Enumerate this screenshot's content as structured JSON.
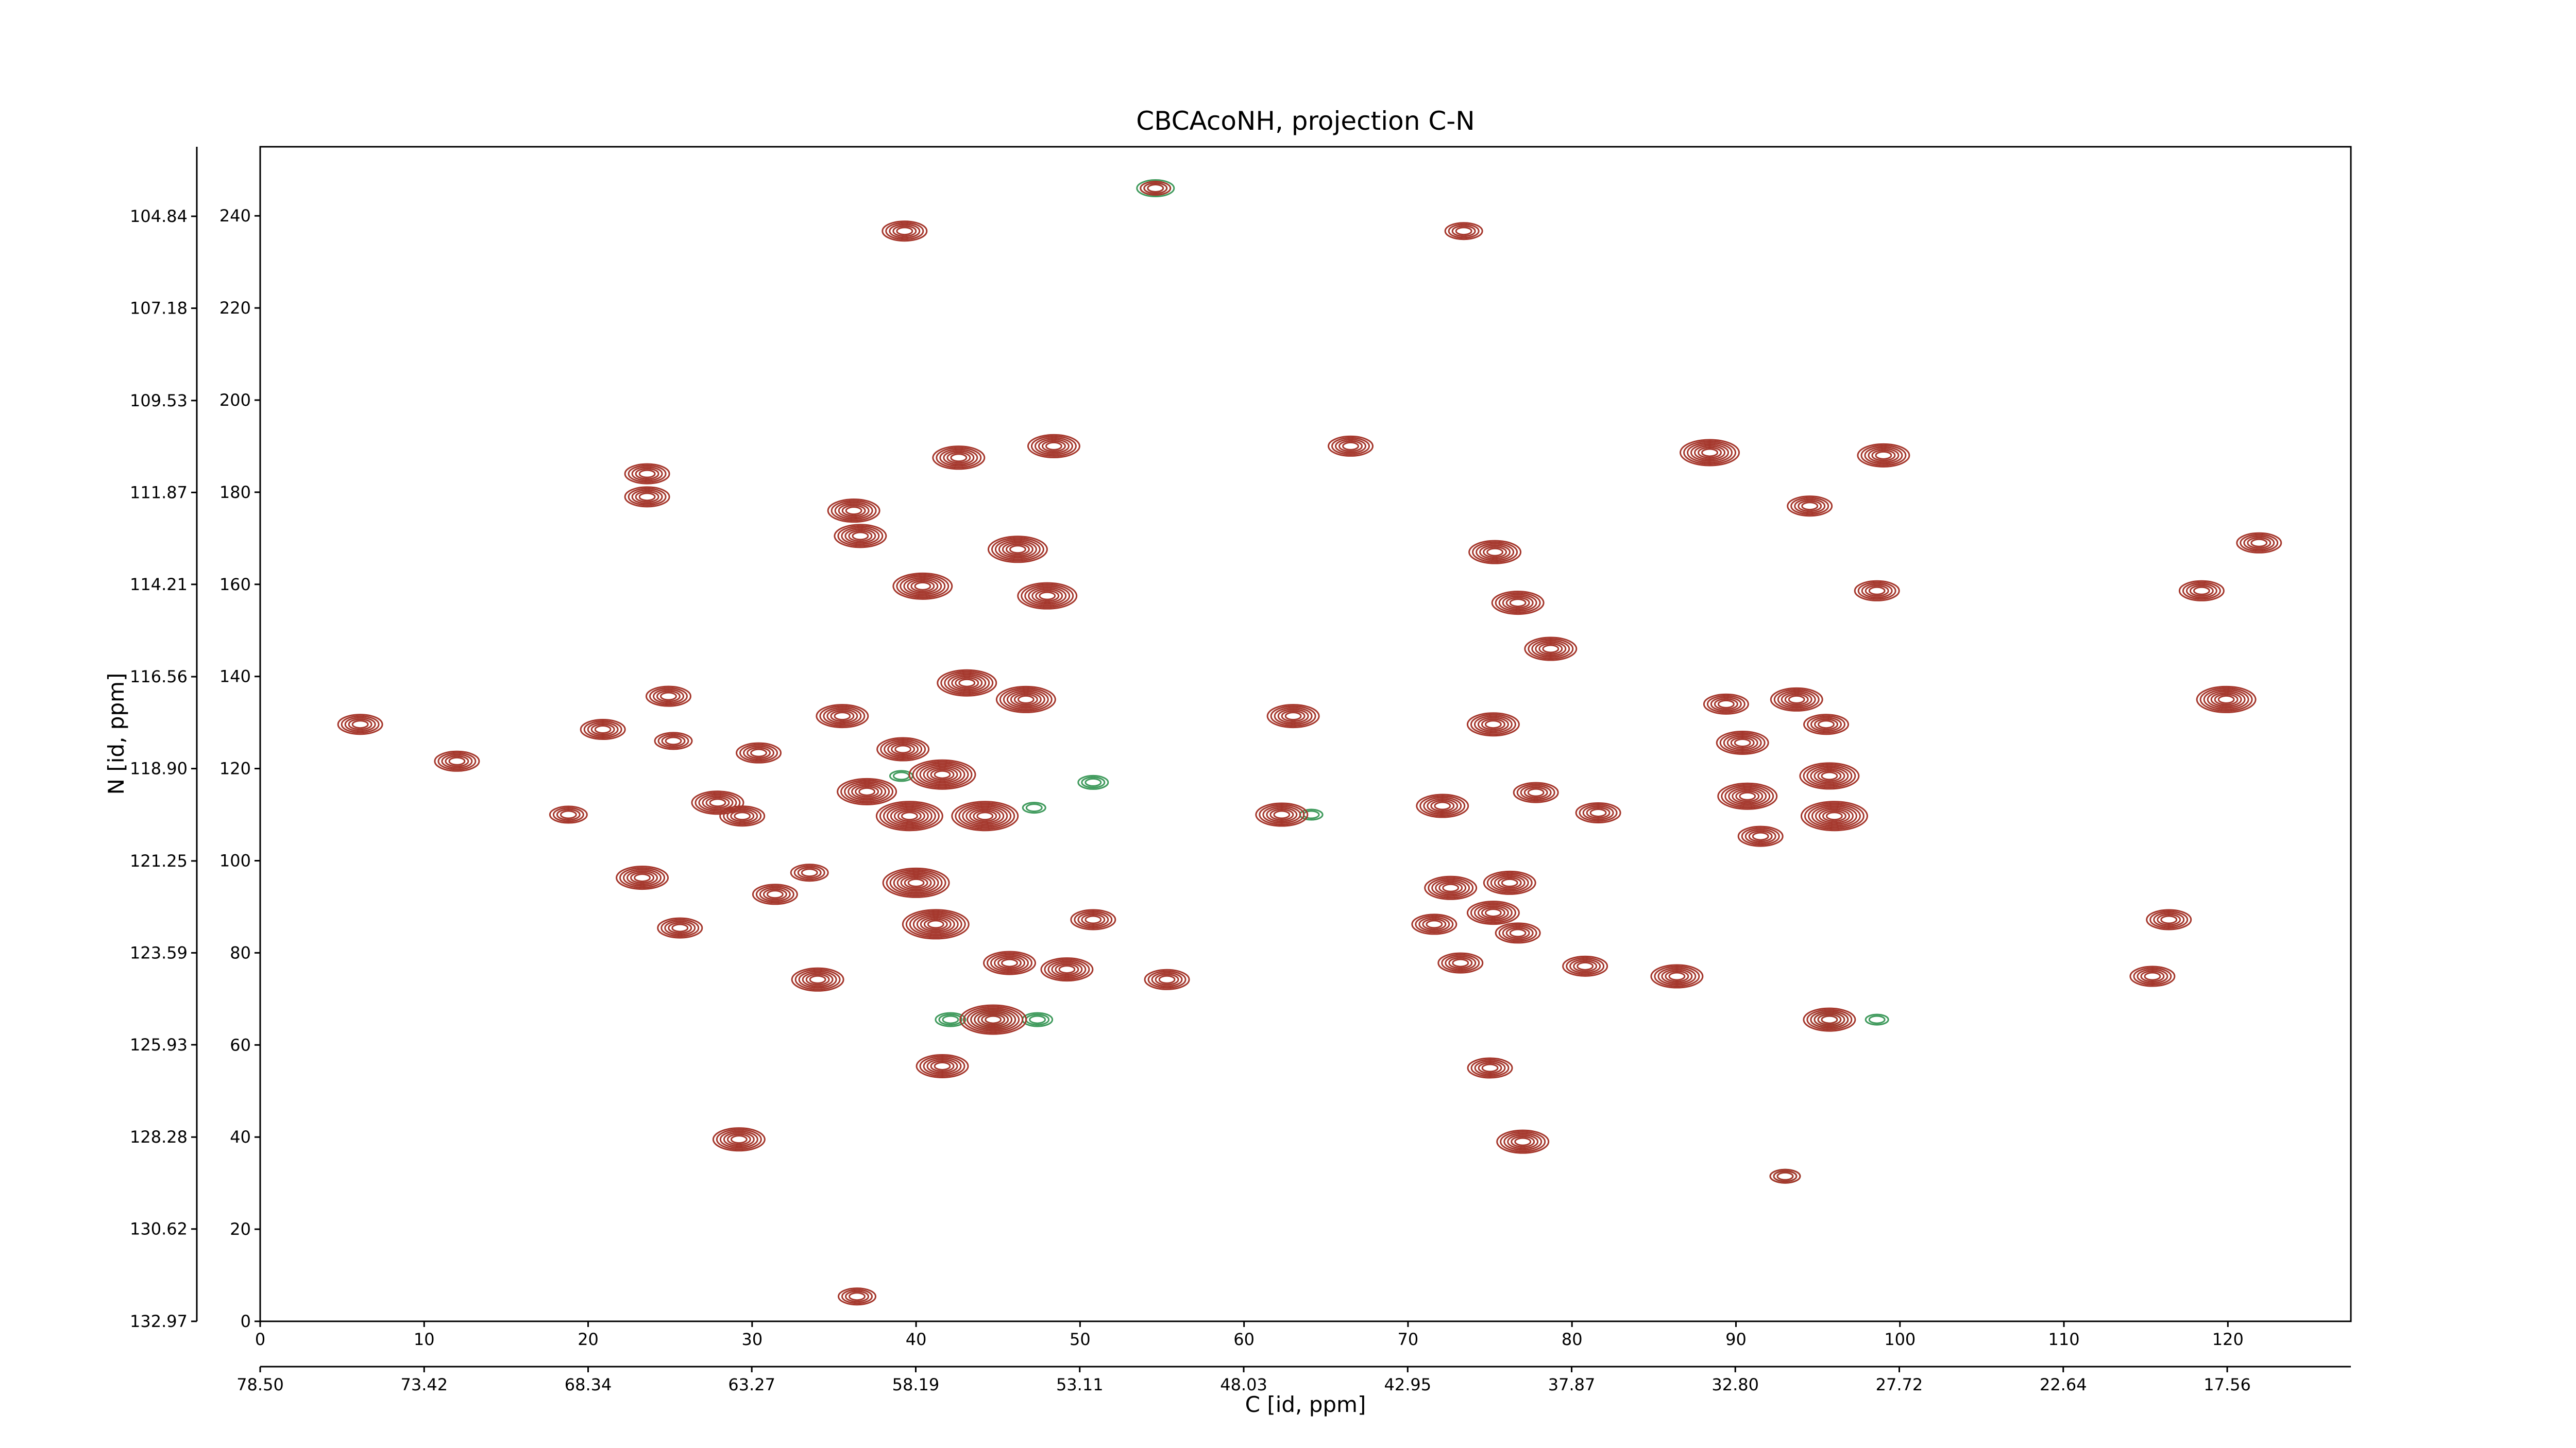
{
  "chart_data": {
    "type": "contour",
    "title": "CBCAcoNH, projection C-N",
    "xlabel": "C [id, ppm]",
    "ylabel": "N [id, ppm]",
    "xlim": [
      0,
      127.5
    ],
    "xticks": [
      0,
      10,
      20,
      30,
      40,
      50,
      60,
      70,
      80,
      90,
      100,
      110,
      120
    ],
    "ylim": [
      0,
      255
    ],
    "yticks": [
      0,
      20,
      40,
      60,
      80,
      100,
      120,
      140,
      160,
      180,
      200,
      220,
      240
    ],
    "x2lim": [
      78.5,
      13.73
    ],
    "x2ticks": [
      {
        "value": 78.5,
        "label": "78.50"
      },
      73.42,
      68.34,
      63.27,
      58.19,
      53.11,
      48.03,
      42.95,
      37.87,
      {
        "value": 32.8,
        "label": "32.80"
      },
      27.72,
      22.64,
      17.56
    ],
    "y2lim": [
      132.97,
      103.07
    ],
    "y2ticks": [
      132.97,
      130.62,
      128.28,
      125.93,
      123.59,
      121.25,
      {
        "value": 118.9,
        "label": "118.90"
      },
      116.56,
      114.21,
      111.87,
      109.53,
      107.18,
      104.84
    ],
    "peaks": {
      "color": "#a5372c",
      "x": [
        42.6,
        48.4,
        23.6,
        23.6,
        36.2,
        36.6,
        40.4,
        46.2,
        48.0,
        66.5,
        88.4,
        99.0,
        94.5,
        75.3,
        98.6,
        118.4,
        119.9,
        121.9,
        76.7,
        78.7,
        43.1,
        46.7,
        35.5,
        63.0,
        75.2,
        24.9,
        6.1,
        20.9,
        25.2,
        12.0,
        30.4,
        39.2,
        41.6,
        37.0,
        39.6,
        44.2,
        27.9,
        29.4,
        18.8,
        62.3,
        72.1,
        77.8,
        81.6,
        89.4,
        93.7,
        90.4,
        90.7,
        95.7,
        96.0,
        91.5,
        95.5,
        23.3,
        31.4,
        33.5,
        40.0,
        41.2,
        50.8,
        72.6,
        76.2,
        75.2,
        71.6,
        76.7,
        116.4,
        25.6,
        45.7,
        49.2,
        55.3,
        73.2,
        80.8,
        86.4,
        34.0,
        115.4,
        44.7,
        95.7,
        41.6,
        75.0,
        77.0,
        29.2,
        39.3,
        73.4,
        54.6,
        93.0,
        36.4
      ],
      "y": [
        187.5,
        190,
        184,
        179,
        176,
        170.5,
        159.6,
        167.6,
        157.5,
        190,
        188.6,
        188,
        177,
        167,
        158.6,
        158.6,
        135,
        169,
        156,
        146,
        138.6,
        135,
        131.4,
        131.4,
        129.6,
        135.7,
        129.6,
        128.5,
        126,
        121.6,
        123.4,
        124.2,
        118.7,
        115,
        109.7,
        109.7,
        112.6,
        109.7,
        110,
        110,
        111.9,
        114.8,
        110.4,
        134,
        135,
        125.6,
        114,
        118.4,
        109.7,
        105.3,
        129.6,
        96.3,
        92.7,
        97.4,
        95.2,
        86.2,
        87.2,
        94.1,
        95.2,
        88.7,
        86.2,
        84.3,
        87.2,
        85.4,
        77.8,
        76.4,
        74.2,
        77.8,
        77.1,
        74.9,
        74.2,
        74.9,
        65.5,
        65.5,
        55.4,
        55,
        39,
        39.5,
        236.7,
        236.7,
        246,
        31.5,
        5.4
      ],
      "levels": [
        6,
        6,
        5,
        5,
        6,
        6,
        7,
        7,
        7,
        5,
        7,
        6,
        5,
        6,
        5,
        5,
        7,
        5,
        6,
        6,
        7,
        7,
        6,
        6,
        6,
        5,
        5,
        5,
        4,
        5,
        5,
        6,
        8,
        7,
        8,
        8,
        6,
        5,
        4,
        6,
        6,
        5,
        5,
        5,
        6,
        6,
        7,
        7,
        8,
        5,
        5,
        6,
        5,
        4,
        8,
        8,
        5,
        6,
        6,
        6,
        5,
        5,
        5,
        5,
        6,
        6,
        5,
        5,
        5,
        6,
        6,
        5,
        8,
        6,
        6,
        5,
        6,
        6,
        5,
        4,
        3,
        3,
        4
      ]
    },
    "negative_peaks": {
      "color": "#3f9a5c",
      "x": [
        42.1,
        47.4,
        44.7,
        98.6,
        95.7,
        54.6,
        93.0,
        39.1,
        47.2,
        50.8,
        64.1
      ],
      "y": [
        65.5,
        65.5,
        65.5,
        65.5,
        65.5,
        246,
        31.5,
        118.4,
        111.5,
        117,
        110
      ],
      "levels": [
        3,
        3,
        5,
        2,
        4,
        4,
        3,
        2,
        2,
        3,
        2
      ]
    }
  }
}
